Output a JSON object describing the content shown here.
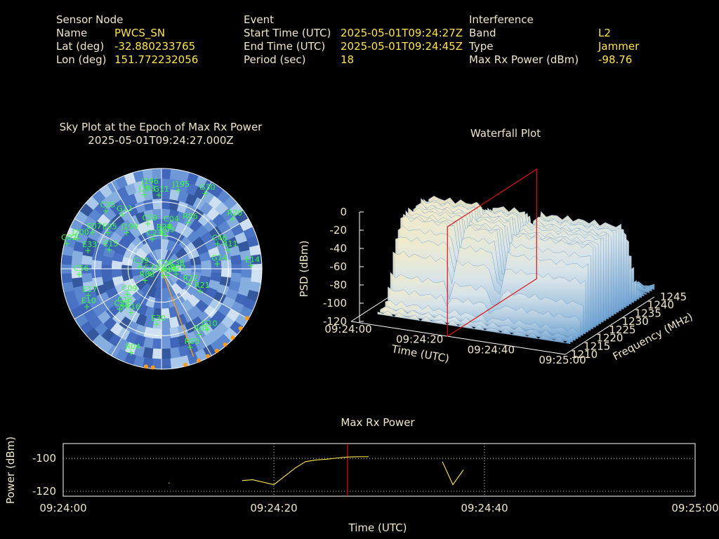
{
  "info": {
    "sensor": {
      "heading": "Sensor Node",
      "rows": [
        {
          "label": "Name",
          "value": "PWCS_SN"
        },
        {
          "label": "Lat (deg)",
          "value": "-32.880233765"
        },
        {
          "label": "Lon (deg)",
          "value": "151.772232056"
        }
      ]
    },
    "event": {
      "heading": "Event",
      "rows": [
        {
          "label": "Start Time (UTC)",
          "value": "2025-05-01T09:24:27Z"
        },
        {
          "label": "End Time (UTC)",
          "value": "2025-05-01T09:24:45Z"
        },
        {
          "label": "Period (sec)",
          "value": "18"
        }
      ]
    },
    "interference": {
      "heading": "Interference",
      "rows": [
        {
          "label": "Band",
          "value": "L2"
        },
        {
          "label": "Type",
          "value": "Jammer"
        },
        {
          "label": "Max Rx Power (dBm)",
          "value": "-98.76"
        }
      ]
    }
  },
  "chart_data": [
    {
      "type": "scatter",
      "title": "Sky Plot at the Epoch of Max Rx Power",
      "subtitle": "2025-05-01T09:24:27.000Z",
      "points": [
        {
          "label": "C35",
          "az": 316,
          "el": 18
        },
        {
          "label": "J196",
          "az": 350,
          "el": 16
        },
        {
          "label": "J193",
          "az": 347,
          "el": 22
        },
        {
          "label": "G11",
          "az": 358,
          "el": 24
        },
        {
          "label": "J195",
          "az": 12,
          "el": 18
        },
        {
          "label": "G30",
          "az": 30,
          "el": 12
        },
        {
          "label": "G13",
          "az": 324,
          "el": 30
        },
        {
          "label": "C59",
          "az": 343,
          "el": 48
        },
        {
          "label": "C04",
          "az": 10,
          "el": 50
        },
        {
          "label": "R06",
          "az": 30,
          "el": 42
        },
        {
          "label": "R24",
          "az": 1,
          "el": 58
        },
        {
          "label": "C03",
          "az": 6,
          "el": 60
        },
        {
          "label": "C23",
          "az": 343,
          "el": 62
        },
        {
          "label": "J199",
          "az": 316,
          "el": 45
        },
        {
          "label": "R20",
          "az": 55,
          "el": 12
        },
        {
          "label": "C46",
          "az": 66,
          "el": 35
        },
        {
          "label": "R11",
          "az": 74,
          "el": 28
        },
        {
          "label": "E07",
          "az": 298,
          "el": 20
        },
        {
          "label": "E05",
          "az": 304,
          "el": 32
        },
        {
          "label": "J200",
          "az": 290,
          "el": 10
        },
        {
          "label": "G02",
          "az": 285,
          "el": 2
        },
        {
          "label": "E33",
          "az": 284,
          "el": 22
        },
        {
          "label": "E15",
          "az": 290,
          "el": 40
        },
        {
          "label": "C56",
          "az": 266,
          "el": 16
        },
        {
          "label": "C39",
          "az": 275,
          "el": 70
        },
        {
          "label": "C33",
          "az": 248,
          "el": 78
        },
        {
          "label": "R08",
          "az": 235,
          "el": 72
        },
        {
          "label": "C38",
          "az": 90,
          "el": 78
        },
        {
          "label": "C06",
          "az": 95,
          "el": 88
        },
        {
          "label": "C13",
          "az": 140,
          "el": 82
        },
        {
          "label": "C40",
          "az": 166,
          "el": 84
        },
        {
          "label": "R23",
          "az": 110,
          "el": 76
        },
        {
          "label": "R22",
          "az": 120,
          "el": 62
        },
        {
          "label": "G14",
          "az": 85,
          "el": 40
        },
        {
          "label": "E14",
          "az": 88,
          "el": 10
        },
        {
          "label": "R21",
          "az": 120,
          "el": 50
        },
        {
          "label": "E17",
          "az": 250,
          "el": 20
        },
        {
          "label": "E10",
          "az": 243,
          "el": 15
        },
        {
          "label": "C09",
          "az": 233,
          "el": 52
        },
        {
          "label": "C16",
          "az": 226,
          "el": 42
        },
        {
          "label": "C22",
          "az": 226,
          "el": 38
        },
        {
          "label": "R16",
          "az": 215,
          "el": 42
        },
        {
          "label": "E30",
          "az": 185,
          "el": 40
        },
        {
          "label": "R05",
          "az": 150,
          "el": 22
        },
        {
          "label": "G10",
          "az": 143,
          "el": 22
        },
        {
          "label": "R03",
          "az": 160,
          "el": 15
        },
        {
          "label": "R04",
          "az": 200,
          "el": 10
        }
      ]
    },
    {
      "type": "surface",
      "title": "Waterfall Plot",
      "xlabel": "Time (UTC)",
      "ylabel": "Frequency (MHz)",
      "zlabel": "PSD (dBm)",
      "x_ticks": [
        "09:24:00",
        "09:24:20",
        "09:24:40",
        "09:25:00"
      ],
      "y_ticks": [
        "1210",
        "1215",
        "1220",
        "1225",
        "1230",
        "1235",
        "1240",
        "1245"
      ],
      "z_ticks": [
        "0",
        "-20",
        "-40",
        "-60",
        "-80",
        "-100",
        "-120"
      ],
      "zlim": [
        -120,
        0
      ],
      "marker_time": "09:24:27"
    },
    {
      "type": "line",
      "title": "Max Rx Power",
      "xlabel": "Time (UTC)",
      "ylabel": "Power (dBm)",
      "x_ticks": [
        "09:24:00",
        "09:24:20",
        "09:24:40",
        "09:25:00"
      ],
      "y_ticks": [
        "-100",
        "-120"
      ],
      "ylim": [
        -123,
        -91
      ],
      "marker_time": "09:24:27",
      "series": [
        {
          "segments": [
            [
              [
                "09:24:10",
                -115
              ],
              [
                "09:24:10.1",
                -115
              ]
            ],
            [
              [
                "09:24:17",
                -113.5
              ],
              [
                "09:24:18",
                -113
              ],
              [
                "09:24:20",
                -116
              ],
              [
                "09:24:22",
                -106
              ],
              [
                "09:24:23",
                -102
              ],
              [
                "09:24:24",
                -101
              ],
              [
                "09:24:25",
                -100.5
              ],
              [
                "09:24:26",
                -99.8
              ],
              [
                "09:24:27",
                -99.2
              ],
              [
                "09:24:28",
                -99.0
              ],
              [
                "09:24:29",
                -99.0
              ]
            ],
            [
              [
                "09:24:36",
                -102
              ],
              [
                "09:24:37",
                -116
              ],
              [
                "09:24:38",
                -107
              ]
            ]
          ]
        }
      ]
    }
  ]
}
